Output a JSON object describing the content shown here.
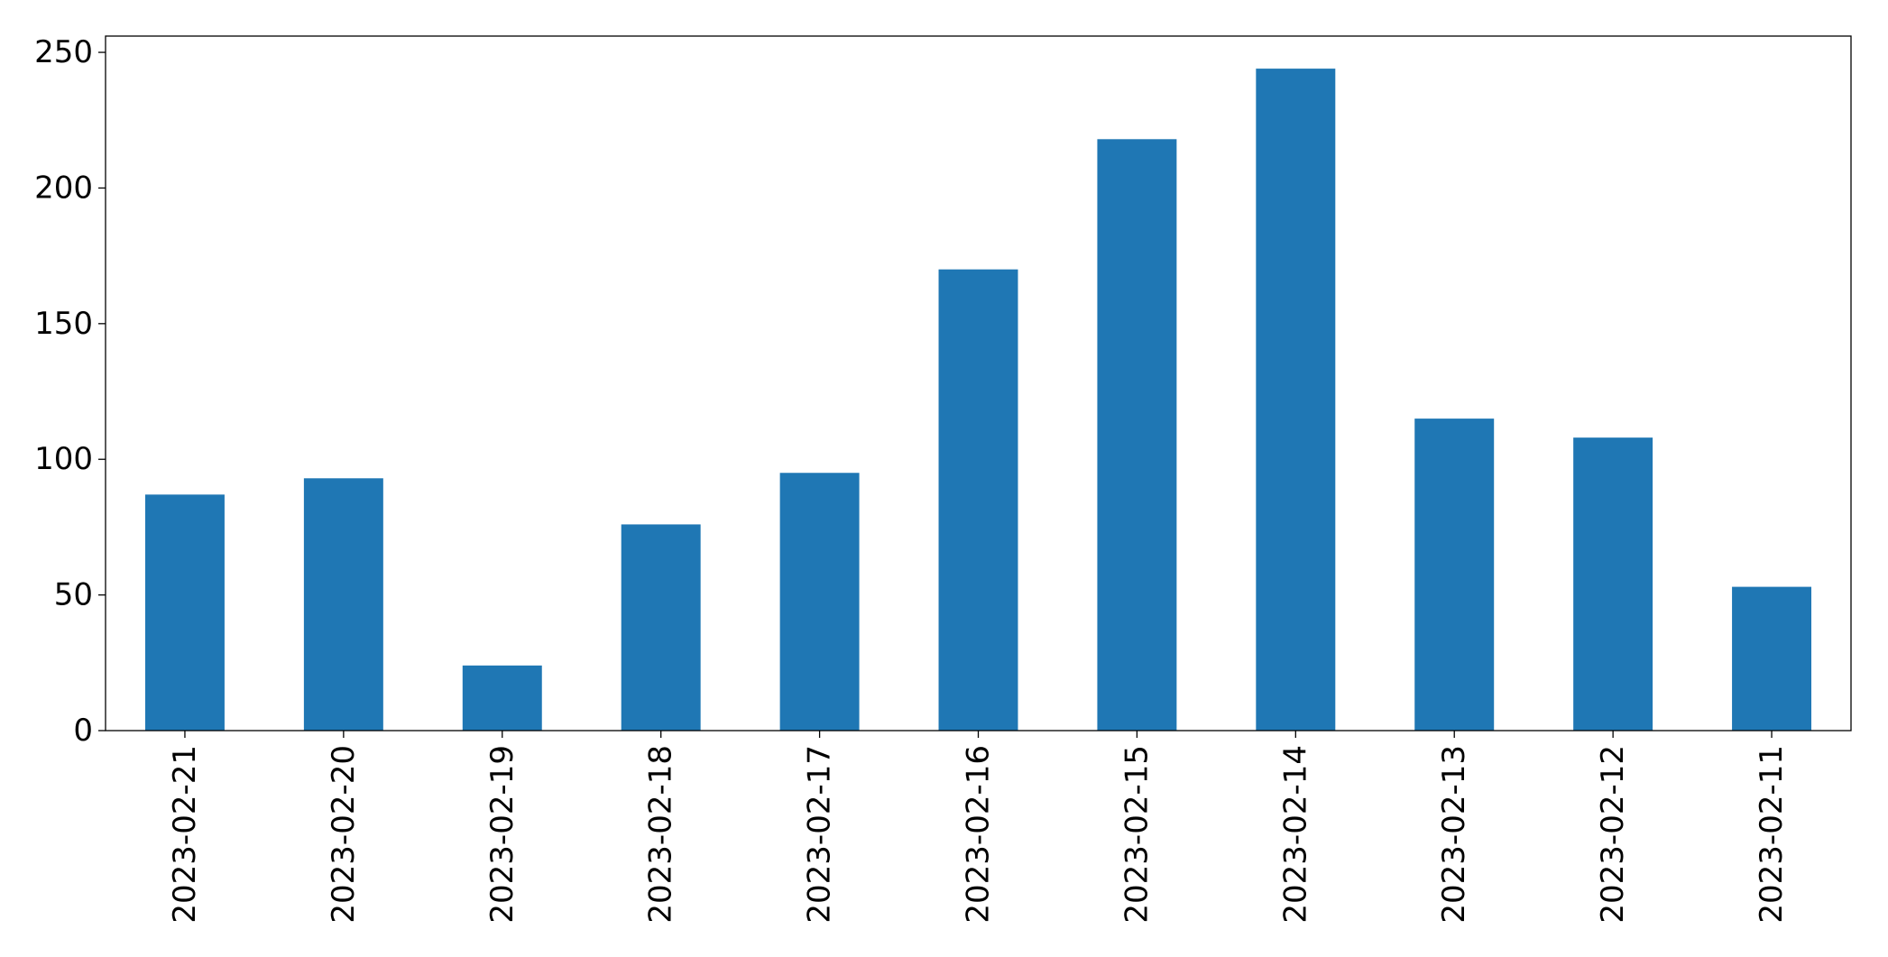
{
  "chart_data": {
    "type": "bar",
    "title": "",
    "xlabel": "",
    "ylabel": "",
    "categories": [
      "2023-02-21",
      "2023-02-20",
      "2023-02-19",
      "2023-02-18",
      "2023-02-17",
      "2023-02-16",
      "2023-02-15",
      "2023-02-14",
      "2023-02-13",
      "2023-02-12",
      "2023-02-11"
    ],
    "values": [
      87,
      93,
      24,
      76,
      95,
      170,
      218,
      244,
      115,
      108,
      53
    ],
    "ylim": [
      0,
      256
    ],
    "yticks": [
      0,
      50,
      100,
      150,
      200,
      250
    ],
    "ytick_labels": [
      "0",
      "50",
      "100",
      "150",
      "200",
      "250"
    ],
    "bar_color": "#1f77b4",
    "grid": false,
    "legend": "none"
  }
}
